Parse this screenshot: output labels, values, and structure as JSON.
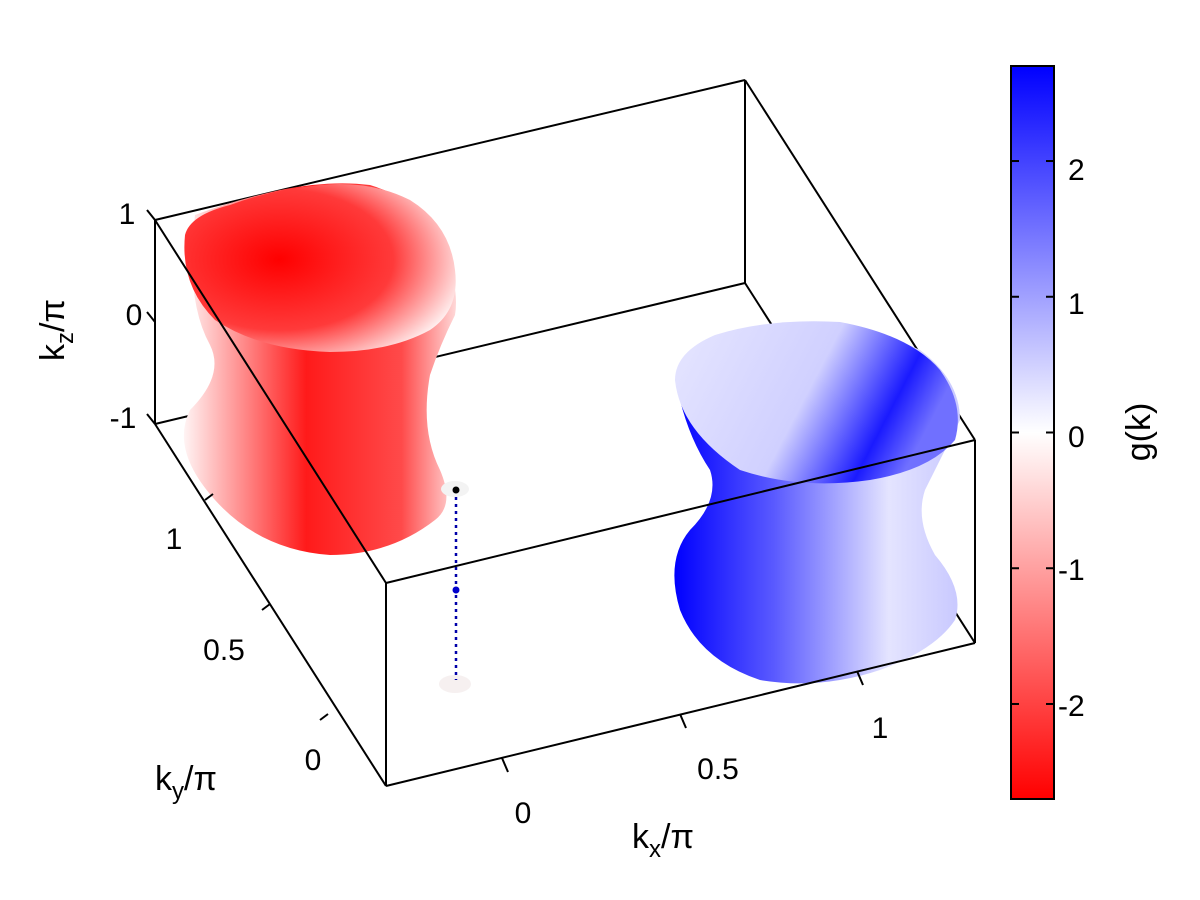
{
  "chart_data": {
    "type": "3d-isosurface",
    "axes": {
      "x": {
        "label_main": "k",
        "label_sub": "x",
        "label_tail": "/π",
        "ticks": [
          "0",
          "0.5",
          "1"
        ]
      },
      "y": {
        "label_main": "k",
        "label_sub": "y",
        "label_tail": "/π",
        "ticks": [
          "0",
          "0.5",
          "1"
        ]
      },
      "z": {
        "label_main": "k",
        "label_sub": "z",
        "label_tail": "/π",
        "ticks": [
          "-1",
          "0",
          "1"
        ]
      }
    },
    "colorbar": {
      "label": "g(k)",
      "range": [
        -2.7,
        2.7
      ],
      "ticks": [
        "-2",
        "-1",
        "0",
        "1",
        "2"
      ],
      "tick_values": [
        -2,
        -1,
        0,
        1,
        2
      ],
      "colors": {
        "low": "#ff0000",
        "mid": "#ffffff",
        "high": "#0000ff"
      }
    },
    "surfaces": [
      {
        "name": "red-pocket",
        "sign": "negative",
        "color": "#ff0000"
      },
      {
        "name": "blue-pocket",
        "sign": "positive",
        "color": "#0000ff"
      }
    ],
    "nodal_line": {
      "color": "#0000aa",
      "style": "dotted"
    }
  }
}
